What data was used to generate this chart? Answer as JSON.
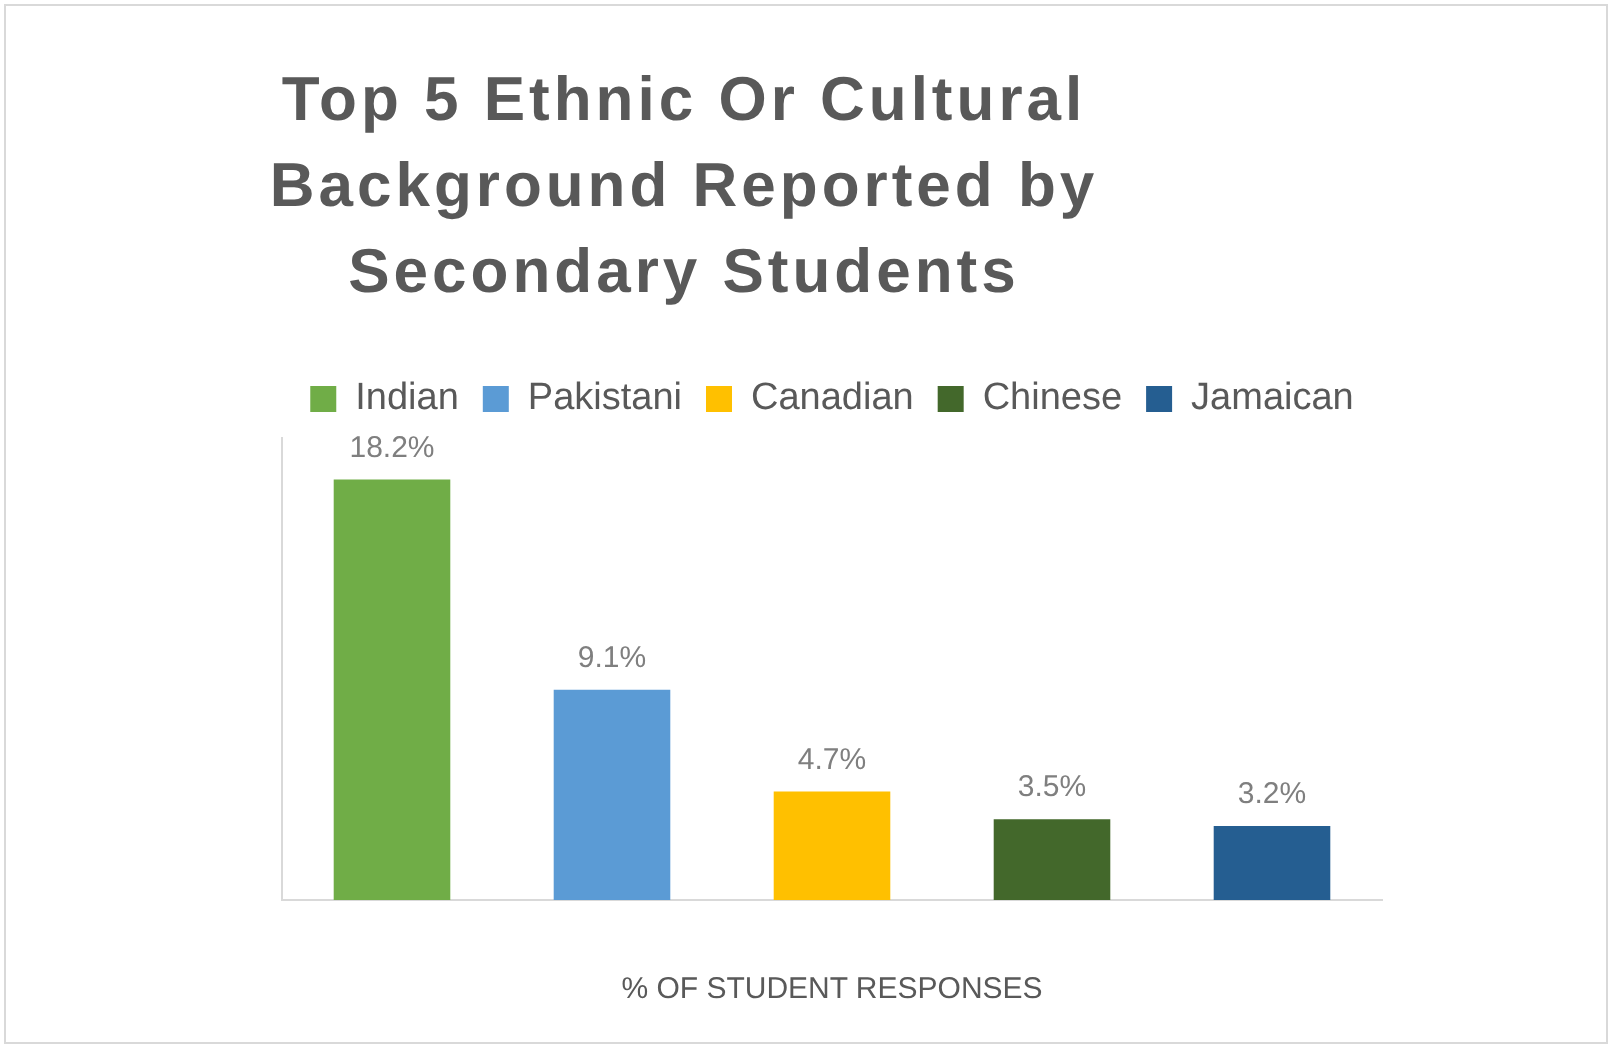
{
  "chart_data": {
    "type": "bar",
    "title": "Top 5 Ethnic Or Cultural Background Reported by Secondary Students",
    "xlabel": "% OF STUDENT RESPONSES",
    "categories": [
      null,
      null,
      null,
      null,
      null
    ],
    "series": [
      {
        "name": "Indian",
        "color": "#70ad47",
        "values": [
          18.2,
          null,
          null,
          null,
          null
        ],
        "value_labels": [
          "18.2%",
          null,
          null,
          null,
          null
        ]
      },
      {
        "name": "Pakistani",
        "color": "#5b9bd5",
        "values": [
          null,
          9.1,
          null,
          null,
          null
        ],
        "value_labels": [
          null,
          "9.1%",
          null,
          null,
          null
        ]
      },
      {
        "name": "Canadian",
        "color": "#ffc000",
        "values": [
          null,
          null,
          4.7,
          null,
          null
        ],
        "value_labels": [
          null,
          null,
          "4.7%",
          null,
          null
        ]
      },
      {
        "name": "Chinese",
        "color": "#43682b",
        "values": [
          null,
          null,
          null,
          3.5,
          null
        ],
        "value_labels": [
          null,
          null,
          null,
          "3.5%",
          null
        ]
      },
      {
        "name": "Jamaican",
        "color": "#255e91",
        "values": [
          null,
          null,
          null,
          null,
          3.2
        ],
        "value_labels": [
          null,
          null,
          null,
          null,
          "3.2%"
        ]
      }
    ],
    "stacked": true,
    "tick_labels": "x",
    "grid": false,
    "legend": "top"
  }
}
